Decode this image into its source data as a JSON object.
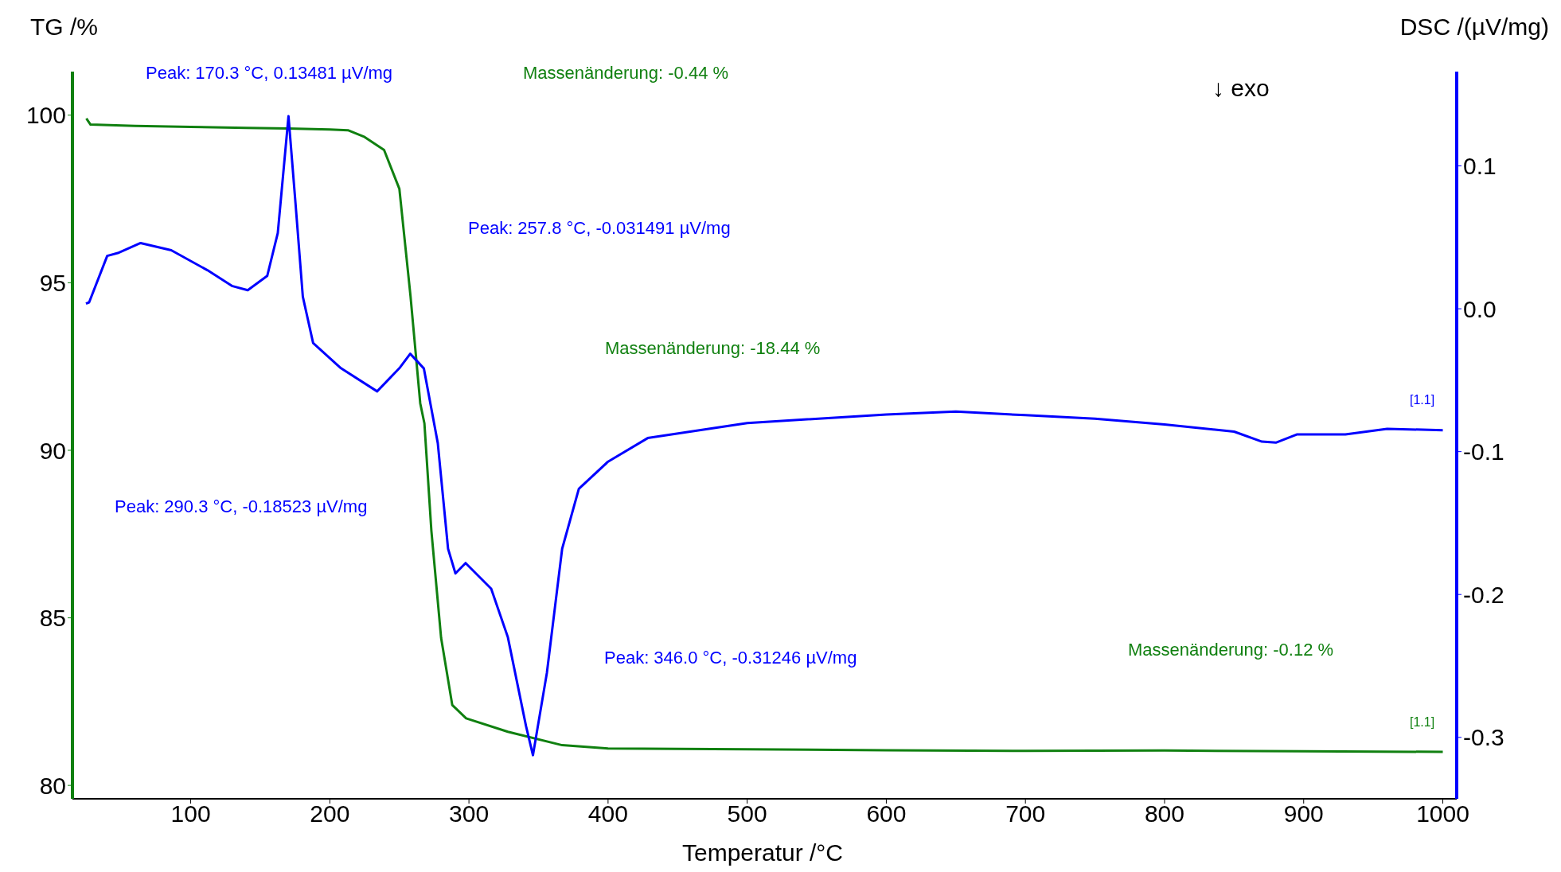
{
  "chart_data": {
    "type": "line",
    "xlabel": "Temperatur /°C",
    "ylabel": "TG /%",
    "y2label": "DSC /(µV/mg)",
    "xlim": [
      15,
      1010
    ],
    "xticks": [
      100,
      200,
      300,
      400,
      500,
      600,
      700,
      800,
      900,
      1000
    ],
    "ylim": [
      79.6,
      101.3
    ],
    "yticks": [
      80,
      85,
      90,
      95,
      100
    ],
    "y2lim": [
      -0.343,
      0.166
    ],
    "y2ticks": [
      -0.3,
      -0.2,
      -0.1,
      {
        "value": 0,
        "label": "0.0"
      },
      0.1
    ],
    "grid": false,
    "legend": false,
    "marker": "none",
    "line_style": "solid",
    "series": [
      {
        "color": "#108010",
        "x": [
          25,
          28,
          60,
          100,
          140,
          170,
          200,
          213,
          225,
          239,
          250,
          258,
          265,
          268,
          273,
          280,
          288,
          298,
          328,
          367,
          400,
          500,
          600,
          700,
          800,
          900,
          1000
        ],
        "values": [
          99.9,
          99.72,
          99.68,
          99.65,
          99.62,
          99.6,
          99.57,
          99.55,
          99.35,
          98.96,
          97.8,
          94.6,
          91.4,
          90.8,
          87.6,
          84.4,
          82.4,
          82.0,
          81.6,
          81.2,
          81.1,
          81.08,
          81.05,
          81.03,
          81.04,
          81.02,
          81.0
        ]
      },
      {
        "color": "#0000ff",
        "axis": "y2",
        "x": [
          24.7,
          27,
          40,
          47.6,
          64,
          86,
          112,
          129.6,
          141,
          155,
          162.6,
          170.3,
          175,
          180.6,
          188,
          208,
          234,
          250,
          257.8,
          267.6,
          277.6,
          285,
          290.3,
          297.6,
          316,
          328,
          341,
          346,
          356,
          367,
          379,
          400,
          428.5,
          500,
          600,
          650,
          700,
          750,
          800,
          850,
          870,
          880,
          895,
          930,
          960,
          1000
        ],
        "values": [
          0.0036,
          0.0045,
          0.037,
          0.039,
          0.046,
          0.041,
          0.027,
          0.016,
          0.013,
          0.023,
          0.053,
          0.13481,
          0.078,
          0.0085,
          -0.024,
          -0.0416,
          -0.0578,
          -0.0416,
          -0.031491,
          -0.0418,
          -0.094,
          -0.168,
          -0.18523,
          -0.178,
          -0.196,
          -0.23,
          -0.292,
          -0.31246,
          -0.255,
          -0.168,
          -0.126,
          -0.107,
          -0.0905,
          -0.08,
          -0.074,
          -0.072,
          -0.0745,
          -0.077,
          -0.081,
          -0.086,
          -0.093,
          -0.0937,
          -0.088,
          -0.088,
          -0.084,
          -0.085
        ]
      }
    ],
    "annotations": [
      "Peak: 170.3 °C, 0.13481 µV/mg",
      "Massenänderung: -0.44 %",
      "↓ exo",
      "Peak: 257.8 °C, -0.031491 µV/mg",
      "Massenänderung: -18.44 %",
      "[1.1]",
      "Peak: 290.3 °C, -0.18523 µV/mg",
      "Peak: 346.0 °C, -0.31246 µV/mg",
      "Massenänderung: -0.12 %",
      "[1.1]"
    ]
  }
}
